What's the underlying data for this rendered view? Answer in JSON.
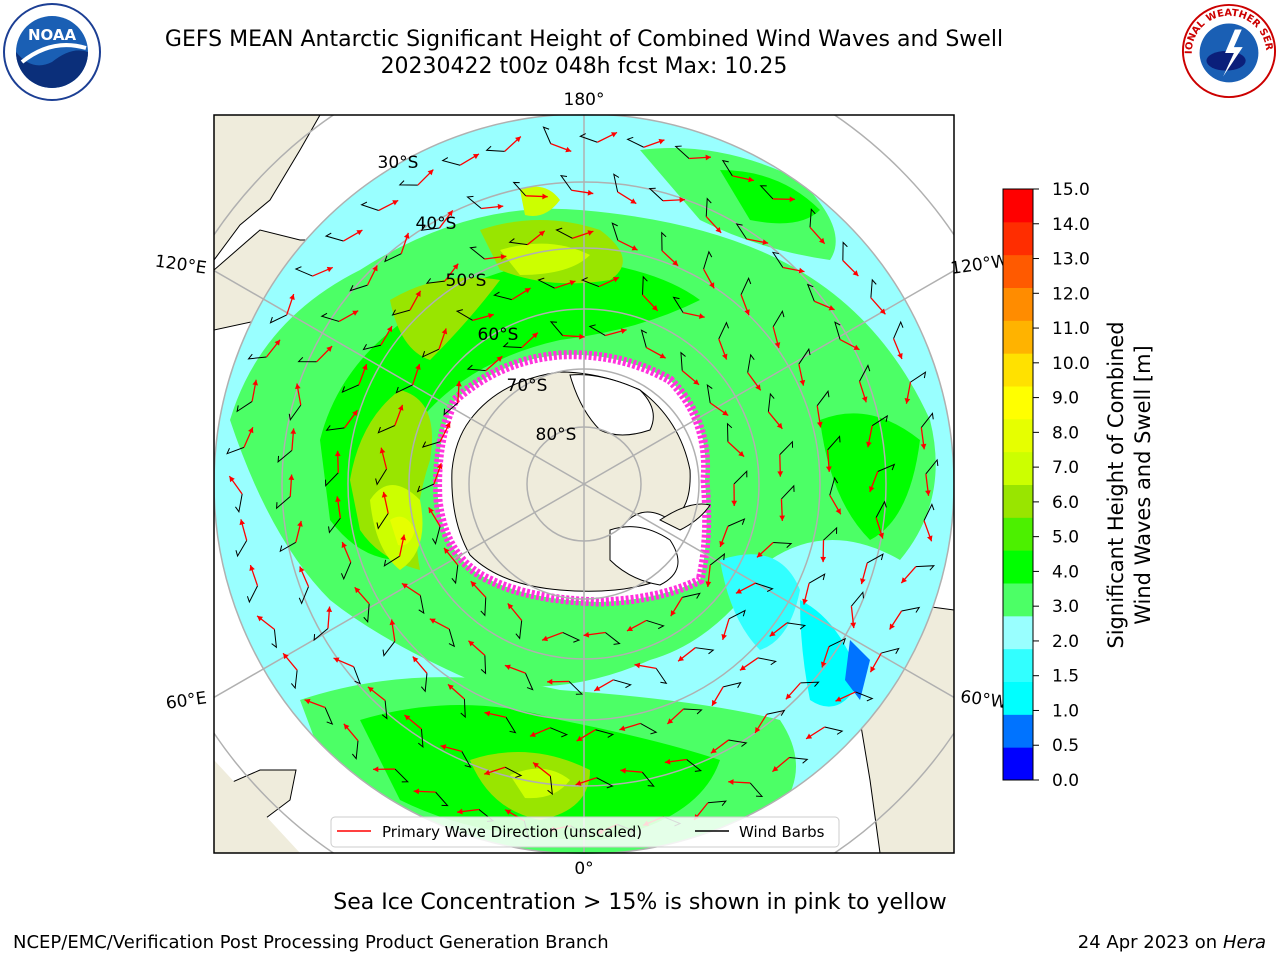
{
  "header": {
    "title_line1": "GEFS MEAN Antarctic Significant Height of Combined Wind Waves and Swell",
    "title_line2": "20230422 t00z 048h fcst   Max: 10.25"
  },
  "logos": {
    "left": {
      "icon": "noaa-logo",
      "text": "NOAA"
    },
    "right": {
      "icon": "nws-logo",
      "text": "NATIONAL WEATHER SERVICE"
    }
  },
  "map": {
    "projection": "south-polar-stereographic",
    "longitude_labels": {
      "top": "180°",
      "left_upper": "120°E",
      "right_upper": "120°W",
      "left_lower": "60°E",
      "right_lower": "60°W",
      "bottom": "0°"
    },
    "latitude_labels": [
      "30°S",
      "40°S",
      "50°S",
      "60°S",
      "70°S",
      "80°S"
    ],
    "colors": {
      "land": "#efecdc",
      "ocean_low": "#99ffff",
      "grid": "#b0b0b0"
    }
  },
  "legend": {
    "items": [
      {
        "label": "Primary Wave Direction (unscaled)",
        "color": "#ff0000"
      },
      {
        "label": "Wind Barbs",
        "color": "#000000"
      }
    ]
  },
  "colorbar": {
    "title_line1": "Significant Height of Combined",
    "title_line2": "Wind Waves and Swell [m]",
    "ticks": [
      "15.0",
      "14.0",
      "13.0",
      "12.0",
      "11.0",
      "10.0",
      "9.0",
      "8.0",
      "7.0",
      "6.0",
      "5.0",
      "4.0",
      "3.0",
      "2.0",
      "1.5",
      "1.0",
      "0.5",
      "0.0"
    ],
    "colors": [
      "#0000ff",
      "#0073ff",
      "#00ffff",
      "#32ffff",
      "#99ffff",
      "#4cff66",
      "#00ff00",
      "#4cf000",
      "#99e500",
      "#ccff00",
      "#e6ff00",
      "#ffff00",
      "#ffe100",
      "#ffb300",
      "#ff8c00",
      "#ff5a00",
      "#ff2d00",
      "#ff0000"
    ]
  },
  "footer": {
    "subtitle": "Sea Ice Concentration > 15% is shown in pink to yellow",
    "credit": "NCEP/EMC/Verification Post Processing Product Generation Branch",
    "date": "24 Apr 2023 on",
    "machine": "Hera"
  }
}
